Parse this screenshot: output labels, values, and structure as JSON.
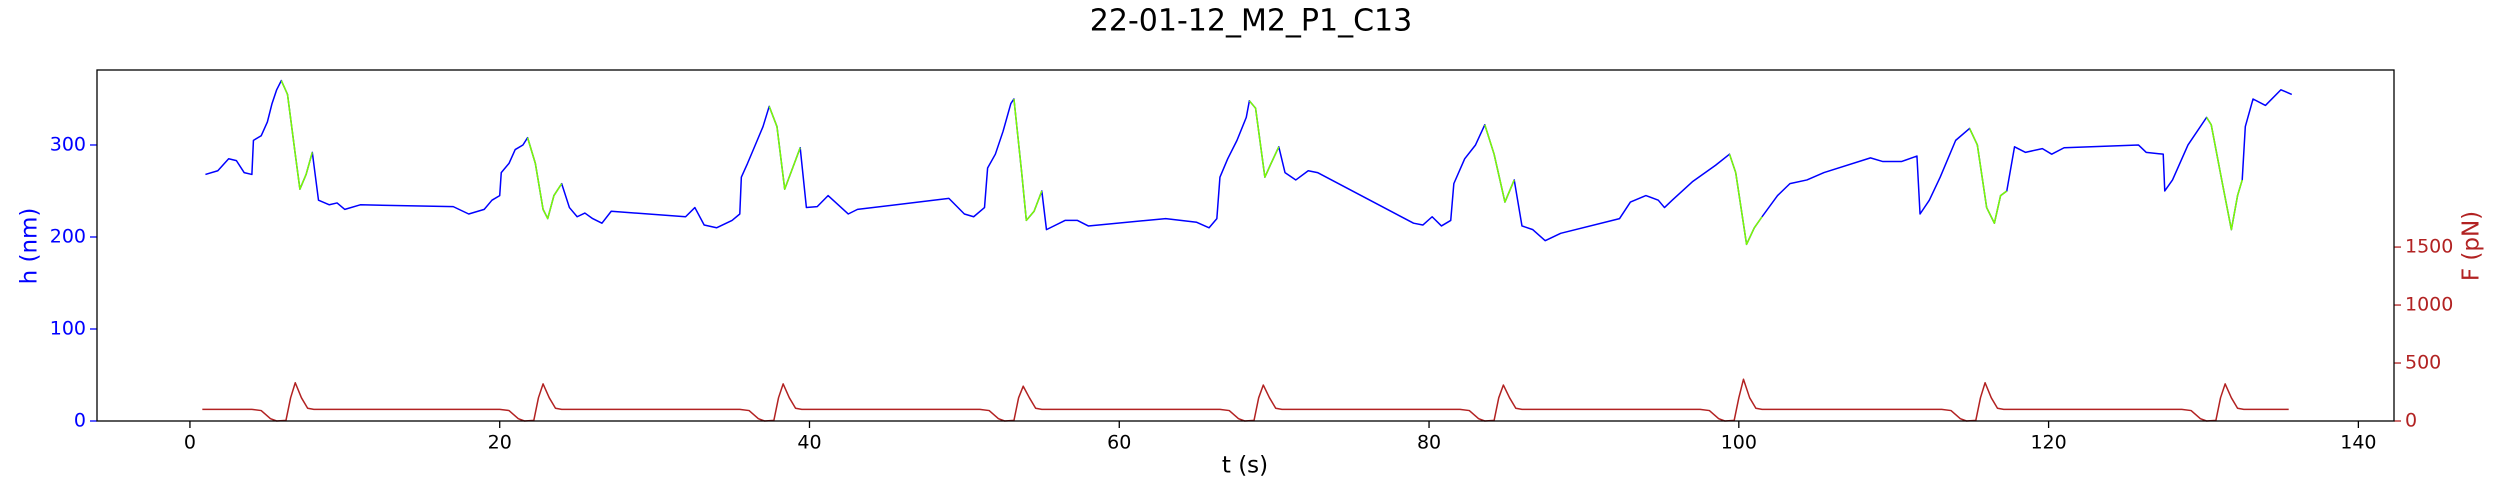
{
  "chart_data": {
    "type": "line",
    "title": "22-01-12_M2_P1_C13",
    "xlabel": "t (s)",
    "ylabel": "h (nm)",
    "y2label": "F (pN)",
    "ycolor": "#0000ff",
    "y2color": "#b22222",
    "xlim": [
      -6,
      142.3
    ],
    "xticks": [
      0,
      20,
      40,
      60,
      80,
      100,
      120,
      140
    ],
    "ylim": [
      0,
      381.5
    ],
    "yticks": [
      0,
      100,
      200,
      300
    ],
    "y2lim": [
      0,
      3027
    ],
    "y2ticks": [
      0,
      500,
      1000,
      1500
    ],
    "series": [
      {
        "color": "#0000ff",
        "x": [
          1,
          1.8,
          2.5,
          3,
          3.5,
          4,
          4.1,
          4.6,
          5,
          5.3,
          5.6,
          5.9,
          6.3,
          6.8,
          7.1,
          7.5,
          7.9,
          8.3,
          9,
          9.5,
          10,
          11,
          17,
          18,
          19,
          19.5,
          20,
          20.1,
          20.6,
          21,
          21.5,
          21.8,
          22.3,
          22.8,
          23.1,
          23.5,
          24,
          24.5,
          25,
          25.5,
          26,
          26.6,
          27.2,
          32,
          32.6,
          33.2,
          34,
          35,
          35.5,
          35.6,
          36,
          36.5,
          37,
          37.4,
          37.9,
          38.4,
          38.8,
          39.4,
          39.8,
          40.5,
          41.2,
          42.5,
          43.1,
          49,
          50,
          50.6,
          51.3,
          51.5,
          52,
          52.5,
          53,
          53.2,
          53.7,
          54,
          54.5,
          55,
          55.3,
          56.5,
          57.3,
          58,
          63,
          65,
          65.8,
          66.3,
          66.5,
          67,
          67.6,
          68.2,
          68.4,
          68.8,
          69.4,
          69.8,
          70.3,
          70.7,
          71.4,
          72.2,
          72.8,
          79,
          79.6,
          80.2,
          80.8,
          81.4,
          81.6,
          82.3,
          83,
          83.6,
          84.2,
          84.9,
          85.5,
          86,
          86.7,
          87.5,
          88.5,
          92.3,
          93,
          94,
          94.8,
          95.2,
          95.7,
          97,
          98.5,
          99.4,
          99.8,
          100.5,
          101,
          101.5,
          102.5,
          103.3,
          104.4,
          105.5,
          108.5,
          109.3,
          110.5,
          111.5,
          111.7,
          112.3,
          113,
          114,
          114.9,
          115.4,
          116,
          116.5,
          116.9,
          117.3,
          117.8,
          118.5,
          119.6,
          120.2,
          121,
          125.8,
          126.3,
          127.4,
          127.5,
          128,
          129,
          130.2,
          130.5,
          131.2,
          131.8,
          132.2,
          132.5,
          132.7,
          133.2,
          134,
          135,
          135.7
        ],
        "values": [
          268,
          272,
          285,
          283,
          270,
          268,
          305,
          310,
          325,
          345,
          360,
          370,
          355,
          290,
          252,
          268,
          292,
          240,
          235,
          237,
          230,
          235,
          233,
          225,
          230,
          240,
          245,
          270,
          280,
          295,
          300,
          308,
          280,
          230,
          220,
          245,
          258,
          232,
          222,
          226,
          220,
          215,
          228,
          222,
          232,
          213,
          210,
          218,
          225,
          265,
          280,
          300,
          320,
          342,
          320,
          252,
          270,
          297,
          232,
          233,
          245,
          225,
          230,
          242,
          225,
          222,
          232,
          275,
          290,
          315,
          345,
          350,
          270,
          218,
          228,
          250,
          208,
          218,
          218,
          212,
          220,
          216,
          210,
          220,
          265,
          285,
          305,
          330,
          348,
          340,
          265,
          280,
          298,
          270,
          262,
          272,
          270,
          215,
          213,
          222,
          212,
          218,
          258,
          285,
          300,
          322,
          290,
          238,
          262,
          212,
          208,
          196,
          204,
          220,
          238,
          245,
          240,
          232,
          240,
          260,
          278,
          290,
          270,
          192,
          210,
          222,
          245,
          258,
          262,
          270,
          286,
          282,
          282,
          288,
          225,
          240,
          265,
          305,
          318,
          300,
          232,
          215,
          245,
          250,
          298,
          292,
          296,
          290,
          297,
          300,
          292,
          290,
          250,
          262,
          300,
          330,
          322,
          260,
          208,
          245,
          262,
          320,
          350,
          343,
          360,
          355
        ]
      },
      {
        "color": "#7cfc00",
        "x": [
          5.9,
          6.3,
          6.8,
          7.1,
          7.5,
          7.9,
          14,
          21.8,
          22.3,
          22.8,
          23.1,
          23.5,
          24,
          30,
          37.4,
          37.9,
          38.4,
          38.8,
          39.4,
          45,
          53.2,
          53.7,
          54,
          54.5,
          55,
          60,
          68.4,
          68.8,
          69.4,
          69.8,
          70.3,
          76,
          83.6,
          84.2,
          84.9,
          85.5,
          90,
          99.4,
          99.8,
          100.5,
          101,
          101.5,
          107,
          114.9,
          115.4,
          116,
          116.5,
          116.9,
          117.3,
          124,
          130.2,
          130.5,
          131.2,
          131.8,
          132.2,
          132.5
        ],
        "values": [
          370,
          355,
          290,
          252,
          268,
          292,
          null,
          308,
          280,
          230,
          220,
          245,
          258,
          null,
          342,
          320,
          252,
          270,
          297,
          null,
          350,
          270,
          218,
          228,
          250,
          null,
          348,
          340,
          265,
          280,
          298,
          null,
          322,
          290,
          238,
          262,
          null,
          290,
          270,
          192,
          210,
          222,
          null,
          318,
          300,
          232,
          215,
          245,
          250,
          null,
          330,
          322,
          260,
          208,
          245,
          262
        ]
      },
      {
        "color": "#b22222",
        "axis": "y2",
        "x": [
          0.8,
          4,
          4.6,
          5.2,
          5.6,
          6.2,
          6.5,
          6.8,
          7.2,
          7.6,
          8,
          20,
          20.6,
          21.2,
          21.6,
          22.2,
          22.5,
          22.8,
          23.2,
          23.6,
          24,
          35.5,
          36.1,
          36.7,
          37.1,
          37.7,
          38,
          38.3,
          38.7,
          39.1,
          39.5,
          51,
          51.6,
          52.2,
          52.6,
          53.2,
          53.5,
          53.8,
          54.2,
          54.6,
          55,
          66.5,
          67.1,
          67.7,
          68.1,
          68.7,
          69,
          69.3,
          69.7,
          70.1,
          70.5,
          82,
          82.6,
          83.2,
          83.6,
          84.2,
          84.5,
          84.8,
          85.2,
          85.6,
          86,
          97.5,
          98.1,
          98.7,
          99.1,
          99.7,
          100,
          100.3,
          100.7,
          101.1,
          101.5,
          113.1,
          113.7,
          114.3,
          114.7,
          115.3,
          115.6,
          115.9,
          116.3,
          116.7,
          117.1,
          128.6,
          129.2,
          129.8,
          130.2,
          130.8,
          131.1,
          131.4,
          131.8,
          132.2,
          132.6,
          135.5
        ],
        "values": [
          100,
          100,
          90,
          20,
          0,
          5,
          200,
          330,
          200,
          110,
          100,
          100,
          90,
          20,
          0,
          5,
          200,
          320,
          200,
          110,
          100,
          100,
          90,
          20,
          0,
          5,
          200,
          320,
          200,
          110,
          100,
          100,
          90,
          20,
          0,
          5,
          200,
          300,
          200,
          110,
          100,
          100,
          90,
          20,
          0,
          5,
          200,
          310,
          200,
          110,
          100,
          100,
          90,
          20,
          0,
          5,
          200,
          310,
          200,
          110,
          100,
          100,
          90,
          20,
          0,
          5,
          200,
          360,
          200,
          110,
          100,
          100,
          90,
          20,
          0,
          5,
          200,
          330,
          200,
          110,
          100,
          100,
          90,
          20,
          0,
          5,
          200,
          320,
          200,
          110,
          100,
          100
        ]
      }
    ]
  }
}
